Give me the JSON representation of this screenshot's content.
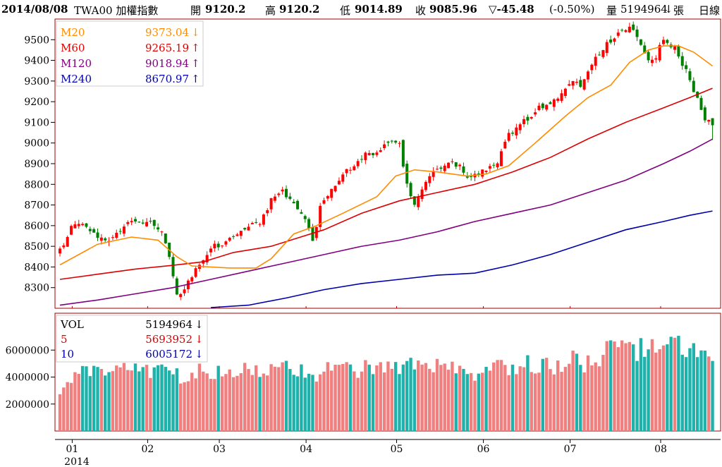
{
  "header": {
    "date": "2014/08/08",
    "symbol": "TWA00 加權指數",
    "open_label": "開",
    "open": "9120.2",
    "high_label": "高",
    "high": "9120.2",
    "low_label": "低",
    "low": "9014.89",
    "close_label": "收",
    "close": "9085.96",
    "change": "▽-45.48",
    "change_pct": "(-0.50%)",
    "volume_label": "量",
    "volume": "5194964",
    "volume_arrow": "↓",
    "volume_unit": "張",
    "period": "日線"
  },
  "colors": {
    "up": "#ff0000",
    "down": "#008000",
    "vol_up": "#f08080",
    "vol_down": "#20b2aa",
    "ma20": "#ff8c00",
    "ma60": "#dd0000",
    "ma120": "#800080",
    "ma240": "#0000aa",
    "panel_border": "#a00000"
  },
  "chart_data": [
    {
      "type": "candlestick",
      "title": "",
      "ylim": [
        8200,
        9600
      ],
      "yticks": [
        8300,
        8400,
        8500,
        8600,
        8700,
        8800,
        8900,
        9000,
        9100,
        9200,
        9300,
        9400,
        9500
      ],
      "legend": [
        {
          "name": "M20",
          "value": "9373.04",
          "arrow": "↓",
          "color": "#ff8c00"
        },
        {
          "name": "M60",
          "value": "9265.19",
          "arrow": "↑",
          "color": "#dd0000"
        },
        {
          "name": "M120",
          "value": "9018.94",
          "arrow": "↑",
          "color": "#800080"
        },
        {
          "name": "M240",
          "value": "8670.97",
          "arrow": "↑",
          "color": "#0000aa"
        }
      ],
      "close_anchors": [
        [
          0,
          8480
        ],
        [
          3,
          8590
        ],
        [
          6,
          8620
        ],
        [
          9,
          8560
        ],
        [
          12,
          8520
        ],
        [
          15,
          8560
        ],
        [
          18,
          8610
        ],
        [
          21,
          8630
        ],
        [
          24,
          8610
        ],
        [
          27,
          8580
        ],
        [
          29,
          8450
        ],
        [
          31,
          8260
        ],
        [
          33,
          8290
        ],
        [
          35,
          8360
        ],
        [
          38,
          8430
        ],
        [
          41,
          8500
        ],
        [
          44,
          8520
        ],
        [
          47,
          8560
        ],
        [
          50,
          8590
        ],
        [
          53,
          8620
        ],
        [
          56,
          8720
        ],
        [
          59,
          8760
        ],
        [
          62,
          8700
        ],
        [
          65,
          8640
        ],
        [
          67,
          8520
        ],
        [
          69,
          8690
        ],
        [
          72,
          8770
        ],
        [
          75,
          8850
        ],
        [
          78,
          8900
        ],
        [
          81,
          8940
        ],
        [
          84,
          8960
        ],
        [
          87,
          8990
        ],
        [
          90,
          9000
        ],
        [
          92,
          8800
        ],
        [
          94,
          8700
        ],
        [
          96,
          8790
        ],
        [
          99,
          8870
        ],
        [
          102,
          8890
        ],
        [
          105,
          8900
        ],
        [
          108,
          8840
        ],
        [
          111,
          8850
        ],
        [
          114,
          8880
        ],
        [
          116,
          8900
        ],
        [
          118,
          9020
        ],
        [
          121,
          9080
        ],
        [
          124,
          9120
        ],
        [
          127,
          9170
        ],
        [
          130,
          9190
        ],
        [
          133,
          9240
        ],
        [
          136,
          9290
        ],
        [
          138,
          9280
        ],
        [
          140,
          9360
        ],
        [
          143,
          9430
        ],
        [
          146,
          9500
        ],
        [
          149,
          9540
        ],
        [
          152,
          9560
        ],
        [
          154,
          9480
        ],
        [
          156,
          9400
        ],
        [
          158,
          9420
        ],
        [
          160,
          9500
        ],
        [
          163,
          9460
        ],
        [
          165,
          9380
        ],
        [
          167,
          9310
        ],
        [
          169,
          9210
        ],
        [
          171,
          9110
        ],
        [
          173,
          9085.96
        ]
      ],
      "ma20": [
        [
          0,
          8410
        ],
        [
          10,
          8510
        ],
        [
          19,
          8545
        ],
        [
          26,
          8530
        ],
        [
          31,
          8450
        ],
        [
          35,
          8405
        ],
        [
          45,
          8395
        ],
        [
          52,
          8395
        ],
        [
          56,
          8440
        ],
        [
          62,
          8560
        ],
        [
          68,
          8600
        ],
        [
          75,
          8660
        ],
        [
          84,
          8740
        ],
        [
          89,
          8840
        ],
        [
          94,
          8870
        ],
        [
          100,
          8860
        ],
        [
          108,
          8840
        ],
        [
          113,
          8850
        ],
        [
          119,
          8890
        ],
        [
          126,
          9000
        ],
        [
          134,
          9130
        ],
        [
          140,
          9220
        ],
        [
          146,
          9280
        ],
        [
          151,
          9390
        ],
        [
          156,
          9450
        ],
        [
          160,
          9470
        ],
        [
          164,
          9470
        ],
        [
          168,
          9440
        ],
        [
          173,
          9373
        ]
      ],
      "ma60": [
        [
          0,
          8340
        ],
        [
          10,
          8365
        ],
        [
          20,
          8390
        ],
        [
          30,
          8408
        ],
        [
          38,
          8425
        ],
        [
          46,
          8470
        ],
        [
          56,
          8500
        ],
        [
          63,
          8540
        ],
        [
          70,
          8580
        ],
        [
          80,
          8660
        ],
        [
          90,
          8720
        ],
        [
          100,
          8760
        ],
        [
          110,
          8800
        ],
        [
          120,
          8860
        ],
        [
          130,
          8930
        ],
        [
          140,
          9020
        ],
        [
          150,
          9100
        ],
        [
          160,
          9170
        ],
        [
          167,
          9220
        ],
        [
          173,
          9265
        ]
      ],
      "ma120": [
        [
          0,
          8215
        ],
        [
          10,
          8240
        ],
        [
          20,
          8270
        ],
        [
          30,
          8300
        ],
        [
          40,
          8340
        ],
        [
          50,
          8380
        ],
        [
          60,
          8420
        ],
        [
          70,
          8460
        ],
        [
          80,
          8500
        ],
        [
          90,
          8530
        ],
        [
          100,
          8570
        ],
        [
          110,
          8620
        ],
        [
          120,
          8660
        ],
        [
          130,
          8700
        ],
        [
          140,
          8760
        ],
        [
          150,
          8820
        ],
        [
          160,
          8900
        ],
        [
          167,
          8960
        ],
        [
          173,
          9019
        ]
      ],
      "ma240": [
        [
          40,
          8200
        ],
        [
          50,
          8215
        ],
        [
          60,
          8250
        ],
        [
          70,
          8290
        ],
        [
          80,
          8320
        ],
        [
          90,
          8340
        ],
        [
          100,
          8360
        ],
        [
          110,
          8370
        ],
        [
          120,
          8410
        ],
        [
          130,
          8460
        ],
        [
          140,
          8520
        ],
        [
          150,
          8580
        ],
        [
          160,
          8620
        ],
        [
          167,
          8650
        ],
        [
          173,
          8671
        ]
      ]
    },
    {
      "type": "bar",
      "title": "",
      "ylim": [
        0,
        8000000
      ],
      "yticks": [
        2000000,
        4000000,
        6000000
      ],
      "ytick_labels": [
        "2000000",
        "4000000",
        "6000000"
      ],
      "legend": [
        {
          "name": "VOL",
          "value": "5194964",
          "arrow": "↓",
          "color": "#000000"
        },
        {
          "name": "5",
          "value": "5693952",
          "arrow": "↓",
          "color": "#dd0000"
        },
        {
          "name": "10",
          "value": "6005172",
          "arrow": "↓",
          "color": "#0000aa"
        }
      ],
      "volume_anchors": [
        [
          0,
          3000000
        ],
        [
          2,
          3600000
        ],
        [
          4,
          4000000
        ],
        [
          6,
          4300000
        ],
        [
          8,
          4500000
        ],
        [
          12,
          4600000
        ],
        [
          16,
          4600000
        ],
        [
          20,
          4600000
        ],
        [
          24,
          4600000
        ],
        [
          28,
          4400000
        ],
        [
          32,
          4100000
        ],
        [
          36,
          4400000
        ],
        [
          40,
          4400000
        ],
        [
          44,
          4100000
        ],
        [
          48,
          4400000
        ],
        [
          52,
          4500000
        ],
        [
          56,
          4800000
        ],
        [
          60,
          4600000
        ],
        [
          64,
          4500000
        ],
        [
          68,
          4300000
        ],
        [
          72,
          4500000
        ],
        [
          76,
          4600000
        ],
        [
          80,
          4600000
        ],
        [
          84,
          4500000
        ],
        [
          88,
          4700000
        ],
        [
          92,
          4800000
        ],
        [
          96,
          4700000
        ],
        [
          100,
          4700000
        ],
        [
          104,
          4500000
        ],
        [
          108,
          4200000
        ],
        [
          112,
          4100000
        ],
        [
          116,
          4600000
        ],
        [
          120,
          4800000
        ],
        [
          124,
          5000000
        ],
        [
          128,
          4900000
        ],
        [
          132,
          4800000
        ],
        [
          136,
          5300000
        ],
        [
          140,
          5000000
        ],
        [
          144,
          5000000
        ],
        [
          146,
          6800000
        ],
        [
          148,
          6000000
        ],
        [
          152,
          5900000
        ],
        [
          156,
          6400000
        ],
        [
          160,
          5800000
        ],
        [
          164,
          6500000
        ],
        [
          168,
          6000000
        ],
        [
          171,
          5500000
        ],
        [
          173,
          5194964
        ]
      ]
    }
  ],
  "x_axis": {
    "month_labels": [
      {
        "label": "01",
        "index": 4
      },
      {
        "label": "02",
        "index": 24
      },
      {
        "label": "03",
        "index": 43
      },
      {
        "label": "04",
        "index": 66
      },
      {
        "label": "05",
        "index": 90
      },
      {
        "label": "06",
        "index": 113
      },
      {
        "label": "07",
        "index": 136
      },
      {
        "label": "08",
        "index": 160
      }
    ],
    "year_label": "2014"
  }
}
